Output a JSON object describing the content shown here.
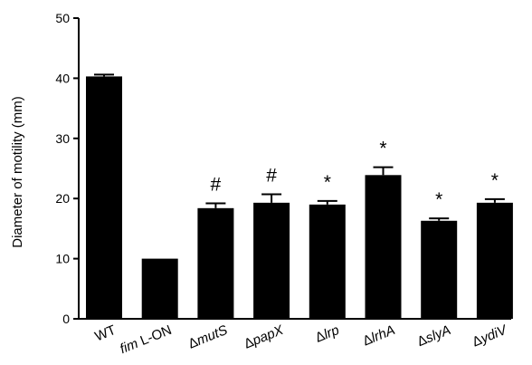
{
  "chart_data": {
    "type": "bar",
    "ylabel": "Diameter of motility (mm)",
    "ylim": [
      0,
      50
    ],
    "yticks": [
      0,
      10,
      20,
      30,
      40,
      50
    ],
    "grid": false,
    "legend": "none",
    "bar_color": "#000000",
    "categories": [
      {
        "prefix": "",
        "italic": "",
        "plain": "WT"
      },
      {
        "prefix": "",
        "italic": "fim",
        "plain": " L-ON"
      },
      {
        "prefix": "Δ",
        "italic": "mutS",
        "plain": ""
      },
      {
        "prefix": "Δ",
        "italic": "papX",
        "plain": ""
      },
      {
        "prefix": "Δ",
        "italic": "lrp",
        "plain": ""
      },
      {
        "prefix": "Δ",
        "italic": "lrhA",
        "plain": ""
      },
      {
        "prefix": "Δ",
        "italic": "slyA",
        "plain": ""
      },
      {
        "prefix": "Δ",
        "italic": "ydiV",
        "plain": ""
      }
    ],
    "values": [
      40.3,
      10.0,
      18.4,
      19.3,
      19.0,
      23.9,
      16.3,
      19.3
    ],
    "errors": [
      0.3,
      0.0,
      0.8,
      1.4,
      0.6,
      1.3,
      0.4,
      0.6
    ],
    "annotations": [
      "",
      "",
      "#",
      "#",
      "*",
      "*",
      "*",
      "*"
    ]
  }
}
